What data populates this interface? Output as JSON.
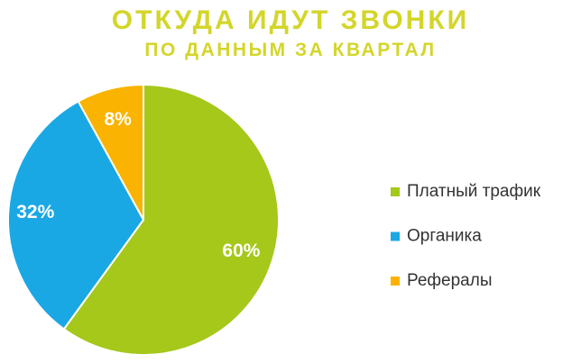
{
  "chart_data": {
    "type": "pie",
    "title": "ОТКУДА ИДУТ ЗВОНКИ",
    "subtitle": "ПО ДАННЫМ ЗА КВАРТАЛ",
    "categories": [
      "Платный трафик",
      "Органика",
      "Рефералы"
    ],
    "values": [
      60,
      32,
      8
    ],
    "value_labels": [
      "60%",
      "32%",
      "8%"
    ],
    "colors": [
      "#a5c81b",
      "#1aa8e5",
      "#f9b300"
    ]
  }
}
